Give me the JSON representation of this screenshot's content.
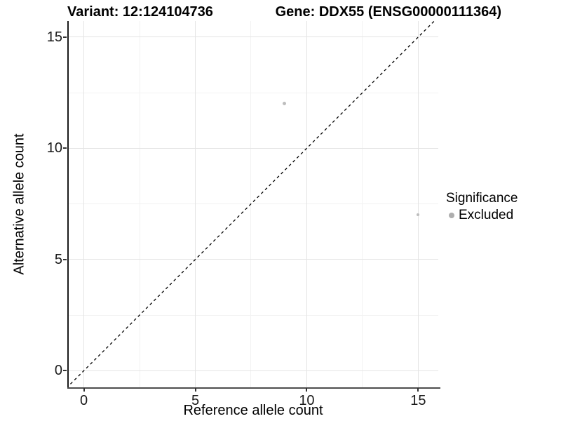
{
  "titles": {
    "left": "Variant: 12:124104736",
    "right": "Gene: DDX55 (ENSG00000111364)"
  },
  "chart_data": {
    "type": "scatter",
    "xlabel": "Reference allele count",
    "ylabel": "Alternative allele count",
    "x_ticks": [
      0,
      5,
      10,
      15
    ],
    "y_ticks": [
      0,
      5,
      10,
      15
    ],
    "x_minor_ticks": [
      2.5,
      7.5,
      12.5
    ],
    "y_minor_ticks": [
      2.5,
      7.5,
      12.5
    ],
    "xlim": [
      -0.71,
      15.9
    ],
    "ylim": [
      -0.78,
      15.72
    ],
    "grid": "major+minor",
    "points": [
      {
        "x": 9,
        "y": 12,
        "significance": "Excluded",
        "diameter": 5
      },
      {
        "x": 15,
        "y": 7,
        "significance": "Excluded",
        "diameter": 4
      }
    ],
    "reference_line": {
      "type": "identity-y-equals-x",
      "style": "dashed",
      "color": "#000000"
    },
    "legend": {
      "title": "Significance",
      "position": "right",
      "items": [
        {
          "label": "Excluded",
          "color": "#aeaeae"
        }
      ]
    },
    "point_color": "#bdbdbd"
  },
  "colors": {
    "background": "#ffffff",
    "grid_major": "#e4e4e4",
    "grid_minor": "#f2f2f2",
    "axis_line": "#333333",
    "text": "#000000"
  }
}
